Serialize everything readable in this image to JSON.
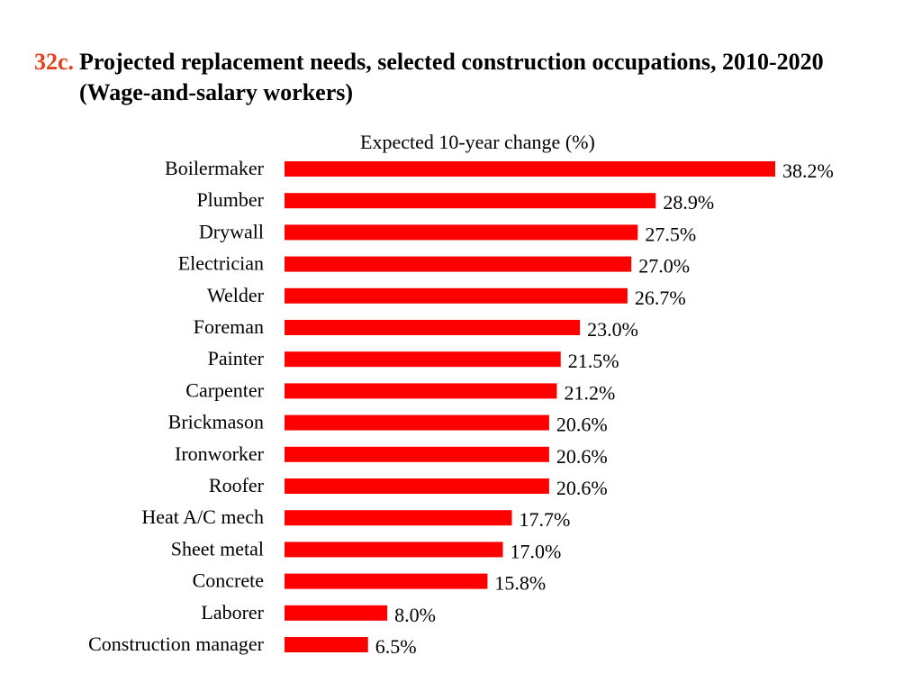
{
  "header": {
    "figure_number": "32c.",
    "title_line1": "Projected replacement needs, selected construction occupations, 2010-2020",
    "title_line2": "(Wage-and-salary workers)"
  },
  "colors": {
    "bar": "#ff0000",
    "figure_number": "#e8401c"
  },
  "chart_data": {
    "type": "bar",
    "orientation": "horizontal",
    "title": "Projected replacement needs, selected construction occupations, 2010-2020 (Wage-and-salary workers)",
    "xlabel": "Expected 10-year change (%)",
    "ylabel": "",
    "xlim": [
      0,
      38.2
    ],
    "grid": false,
    "legend": "none",
    "categories": [
      "Boilermaker",
      "Plumber",
      "Drywall",
      "Electrician",
      "Welder",
      "Foreman",
      "Painter",
      "Carpenter",
      "Brickmason",
      "Ironworker",
      "Roofer",
      "Heat A/C mech",
      "Sheet metal",
      "Concrete",
      "Laborer",
      "Construction manager"
    ],
    "values": [
      38.2,
      28.9,
      27.5,
      27.0,
      26.7,
      23.0,
      21.5,
      21.2,
      20.6,
      20.6,
      20.6,
      17.7,
      17.0,
      15.8,
      8.0,
      6.5
    ],
    "value_labels": [
      "38.2%",
      "28.9%",
      "27.5%",
      "27.0%",
      "26.7%",
      "23.0%",
      "21.5%",
      "21.2%",
      "20.6%",
      "20.6%",
      "20.6%",
      "17.7%",
      "17.0%",
      "15.8%",
      "8.0%",
      "6.5%"
    ]
  }
}
